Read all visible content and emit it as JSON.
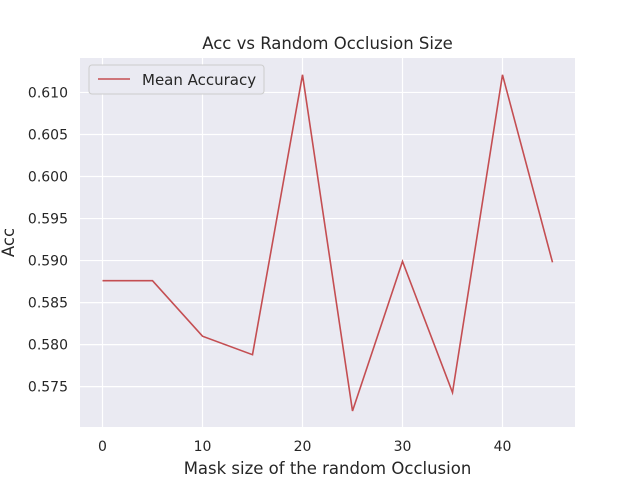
{
  "chart_data": {
    "type": "line",
    "title": "Acc vs Random Occlusion Size",
    "xlabel": "Mask size of the random Occlusion",
    "ylabel": "Acc",
    "x": [
      0,
      5,
      10,
      15,
      20,
      25,
      30,
      35,
      40,
      45
    ],
    "xlim": [
      -2.25,
      47.25
    ],
    "ylim": [
      0.5702,
      0.6141
    ],
    "xticks": [
      0,
      10,
      20,
      30,
      40
    ],
    "xtick_labels": [
      "0",
      "10",
      "20",
      "30",
      "40"
    ],
    "yticks": [
      0.575,
      0.58,
      0.585,
      0.59,
      0.595,
      0.6,
      0.605,
      0.61
    ],
    "ytick_labels": [
      "0.575",
      "0.580",
      "0.585",
      "0.590",
      "0.595",
      "0.600",
      "0.605",
      "0.610"
    ],
    "grid": true,
    "legend_position": "top-left",
    "series": [
      {
        "name": "Mean Accuracy",
        "color": "#c44e52",
        "values": [
          0.5876,
          0.5876,
          0.581,
          0.5788,
          0.6121,
          0.5721,
          0.5899,
          0.5743,
          0.6121,
          0.5898
        ]
      }
    ],
    "style": {
      "background": "#eaeaf2",
      "grid_color": "#ffffff"
    }
  }
}
